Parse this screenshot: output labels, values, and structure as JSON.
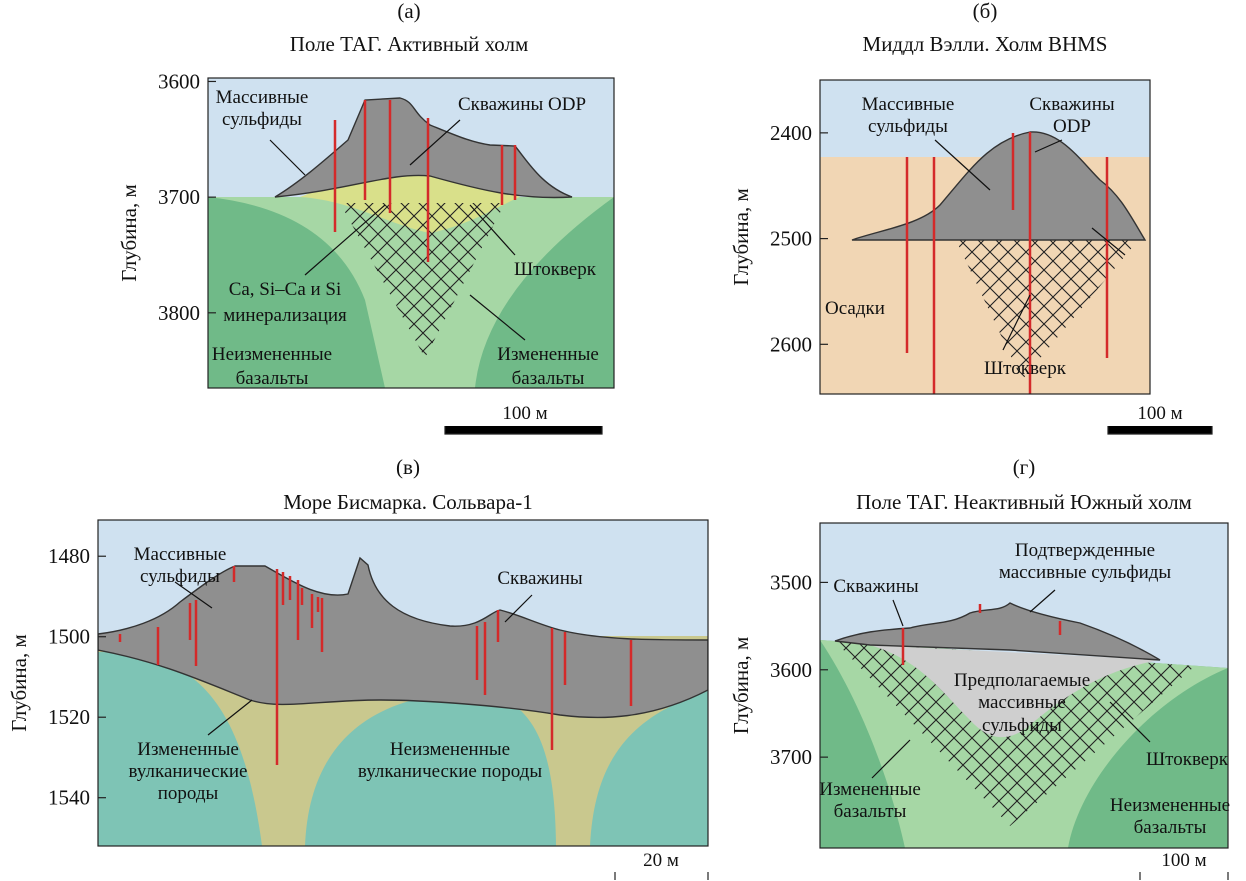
{
  "panels": [
    {
      "letter": "(а)",
      "title": "Поле ТАГ. Активный холм",
      "y_label": "Глубина, м",
      "ylim": [
        3597,
        3865
      ],
      "yticks": [
        3600,
        3700,
        3800
      ],
      "scale": "100 м",
      "labels": [
        [
          "Массивные",
          "сульфиды"
        ],
        [
          "Скважины ODP"
        ],
        [
          "Ca, Si–Ca и Si",
          "минерализация"
        ],
        [
          "Штокверк"
        ],
        [
          "Неизмененные",
          "базальты"
        ],
        [
          "Измененные",
          "базальты"
        ]
      ]
    },
    {
      "letter": "(б)",
      "title": "Миддл Вэлли. Холм BHMS",
      "y_label": "Глубина, м",
      "ylim": [
        2350,
        2647
      ],
      "yticks": [
        2400,
        2500,
        2600
      ],
      "scale": "100 м",
      "labels": [
        [
          "Массивные",
          "сульфиды"
        ],
        [
          "Скважины",
          "ODP"
        ],
        [
          "Осадки"
        ],
        [
          "Штокверк"
        ]
      ]
    },
    {
      "letter": "(в)",
      "title": "Море Бисмарка. Сольвара-1",
      "y_label": "Глубина, м",
      "ylim": [
        1471,
        1552
      ],
      "yticks": [
        1480,
        1500,
        1520,
        1540
      ],
      "scale": "20 м",
      "labels": [
        [
          "Массивные",
          "сульфиды"
        ],
        [
          "Скважины"
        ],
        [
          "Измененные",
          "вулканические",
          "породы"
        ],
        [
          "Неизмененные",
          "вулканические породы"
        ]
      ]
    },
    {
      "letter": "(г)",
      "title": "Поле ТАГ. Неактивный Южный холм",
      "y_label": "Глубина, м",
      "ylim": [
        3432,
        3804
      ],
      "yticks": [
        3500,
        3600,
        3700
      ],
      "scale": "100 м",
      "labels": [
        [
          "Скважины"
        ],
        [
          "Подтвержденные",
          "массивные сульфиды"
        ],
        [
          "Предполагаемые",
          "массивные",
          "сульфиды"
        ],
        [
          "Штокверк"
        ],
        [
          "Измененные",
          "базальты"
        ],
        [
          "Неизмененные",
          "базальты"
        ]
      ]
    }
  ]
}
